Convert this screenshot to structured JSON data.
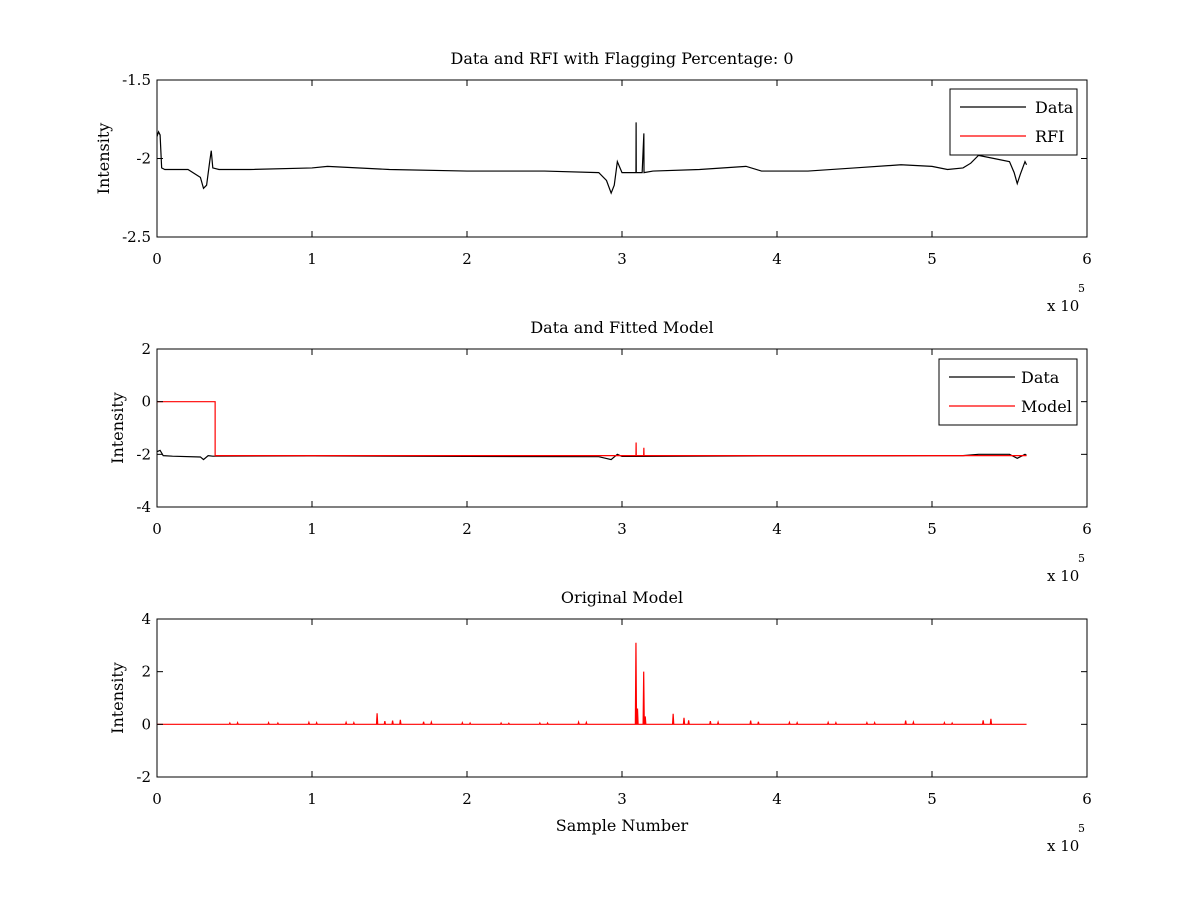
{
  "figure": {
    "background": "#ffffff"
  },
  "chart_data": [
    {
      "type": "line",
      "title": "Data and RFI with Flagging Percentage: 0",
      "xlabel": "",
      "ylabel": "Intensity",
      "xlim": [
        0,
        6
      ],
      "ylim": [
        -2.5,
        -1.5
      ],
      "x_multiplier_label": "x 10",
      "x_multiplier_exponent": "5",
      "xticks": [
        "0",
        "1",
        "2",
        "3",
        "4",
        "5",
        "6"
      ],
      "yticks": [
        "-2.5",
        "-2",
        "-1.5"
      ],
      "ytick_values": [
        -2.5,
        -2,
        -1.5
      ],
      "y_inverted": true,
      "legend": {
        "position": "top-right",
        "entries": [
          {
            "label": "Data",
            "color": "#000000"
          },
          {
            "label": "RFI",
            "color": "#ff0000"
          }
        ]
      },
      "series": [
        {
          "name": "Data",
          "color": "#000000",
          "x": [
            0.0,
            0.01,
            0.02,
            0.03,
            0.05,
            0.1,
            0.2,
            0.28,
            0.3,
            0.32,
            0.34,
            0.35,
            0.36,
            0.4,
            0.6,
            1.0,
            1.1,
            1.5,
            2.0,
            2.5,
            2.85,
            2.9,
            2.93,
            2.95,
            2.97,
            3.0,
            3.09,
            3.091,
            3.092,
            3.13,
            3.141,
            3.142,
            3.2,
            3.5,
            3.8,
            3.9,
            4.2,
            4.5,
            4.8,
            5.0,
            5.1,
            5.2,
            5.25,
            5.3,
            5.4,
            5.5,
            5.53,
            5.55,
            5.57,
            5.6,
            5.61
          ],
          "y": [
            -1.86,
            -1.83,
            -1.85,
            -2.06,
            -2.07,
            -2.07,
            -2.07,
            -2.12,
            -2.19,
            -2.17,
            -2.02,
            -1.95,
            -2.06,
            -2.07,
            -2.07,
            -2.06,
            -2.05,
            -2.07,
            -2.08,
            -2.08,
            -2.09,
            -2.14,
            -2.22,
            -2.17,
            -2.02,
            -2.09,
            -2.09,
            -1.77,
            -2.09,
            -2.09,
            -1.84,
            -2.09,
            -2.08,
            -2.07,
            -2.05,
            -2.08,
            -2.08,
            -2.06,
            -2.04,
            -2.05,
            -2.07,
            -2.06,
            -2.03,
            -1.98,
            -2.0,
            -2.02,
            -2.09,
            -2.16,
            -2.1,
            -2.02,
            -2.04
          ]
        }
      ]
    },
    {
      "type": "line",
      "title": "Data and Fitted Model",
      "xlabel": "",
      "ylabel": "Intensity",
      "xlim": [
        0,
        6
      ],
      "ylim": [
        -4,
        2
      ],
      "x_multiplier_label": "x 10",
      "x_multiplier_exponent": "5",
      "xticks": [
        "0",
        "1",
        "2",
        "3",
        "4",
        "5",
        "6"
      ],
      "yticks": [
        "-4",
        "-2",
        "0",
        "2"
      ],
      "ytick_values": [
        -4,
        -2,
        0,
        2
      ],
      "y_inverted": false,
      "legend": {
        "position": "top-right",
        "entries": [
          {
            "label": "Data",
            "color": "#000000"
          },
          {
            "label": "Model",
            "color": "#ff0000"
          }
        ]
      },
      "series": [
        {
          "name": "Data",
          "color": "#000000",
          "x": [
            0.0,
            0.02,
            0.04,
            0.1,
            0.28,
            0.3,
            0.33,
            0.36,
            1.0,
            2.0,
            2.85,
            2.93,
            2.97,
            3.0,
            4.0,
            5.0,
            5.2,
            5.3,
            5.5,
            5.55,
            5.6,
            5.61
          ],
          "y": [
            -1.9,
            -1.85,
            -2.05,
            -2.07,
            -2.1,
            -2.2,
            -2.05,
            -2.07,
            -2.06,
            -2.08,
            -2.09,
            -2.2,
            -2.0,
            -2.08,
            -2.06,
            -2.05,
            -2.05,
            -2.0,
            -2.0,
            -2.15,
            -2.0,
            -2.04
          ]
        },
        {
          "name": "Model",
          "color": "#ff0000",
          "x": [
            0.0,
            0.375,
            0.375,
            3.09,
            3.091,
            3.092,
            3.14,
            3.141,
            3.142,
            5.61
          ],
          "y": [
            0.0,
            0.0,
            -2.05,
            -2.05,
            -1.55,
            -2.05,
            -2.05,
            -1.75,
            -2.05,
            -2.05
          ]
        }
      ]
    },
    {
      "type": "line",
      "title": "Original Model",
      "xlabel": "Sample Number",
      "ylabel": "Intensity",
      "xlim": [
        0,
        6
      ],
      "ylim": [
        -2,
        4
      ],
      "x_multiplier_label": "x 10",
      "x_multiplier_exponent": "5",
      "xticks": [
        "0",
        "1",
        "2",
        "3",
        "4",
        "5",
        "6"
      ],
      "yticks": [
        "-2",
        "0",
        "2",
        "4"
      ],
      "ytick_values": [
        -2,
        0,
        2,
        4
      ],
      "y_inverted": false,
      "legend": null,
      "series": [
        {
          "name": "",
          "color": "#ff0000",
          "baseline": 0,
          "x_end": 5.61,
          "spikes": [
            [
              0.47,
              0.05
            ],
            [
              0.52,
              0.06
            ],
            [
              0.72,
              0.06
            ],
            [
              0.78,
              0.05
            ],
            [
              0.98,
              0.07
            ],
            [
              1.03,
              0.06
            ],
            [
              1.22,
              0.07
            ],
            [
              1.27,
              0.06
            ],
            [
              1.42,
              0.42
            ],
            [
              1.47,
              0.12
            ],
            [
              1.52,
              0.14
            ],
            [
              1.57,
              0.17
            ],
            [
              1.72,
              0.1
            ],
            [
              1.77,
              0.08
            ],
            [
              1.97,
              0.06
            ],
            [
              2.02,
              0.05
            ],
            [
              2.22,
              0.05
            ],
            [
              2.27,
              0.04
            ],
            [
              2.47,
              0.05
            ],
            [
              2.52,
              0.05
            ],
            [
              2.72,
              0.08
            ],
            [
              2.77,
              0.07
            ],
            [
              3.09,
              3.1
            ],
            [
              3.1,
              0.6
            ],
            [
              3.14,
              2.0
            ],
            [
              3.15,
              0.3
            ],
            [
              3.33,
              0.4
            ],
            [
              3.4,
              0.25
            ],
            [
              3.43,
              0.15
            ],
            [
              3.57,
              0.12
            ],
            [
              3.62,
              0.08
            ],
            [
              3.83,
              0.14
            ],
            [
              3.88,
              0.1
            ],
            [
              4.08,
              0.07
            ],
            [
              4.13,
              0.06
            ],
            [
              4.33,
              0.07
            ],
            [
              4.38,
              0.06
            ],
            [
              4.58,
              0.06
            ],
            [
              4.63,
              0.06
            ],
            [
              4.83,
              0.14
            ],
            [
              4.88,
              0.08
            ],
            [
              5.08,
              0.06
            ],
            [
              5.13,
              0.05
            ],
            [
              5.33,
              0.15
            ],
            [
              5.38,
              0.21
            ]
          ]
        }
      ]
    }
  ]
}
